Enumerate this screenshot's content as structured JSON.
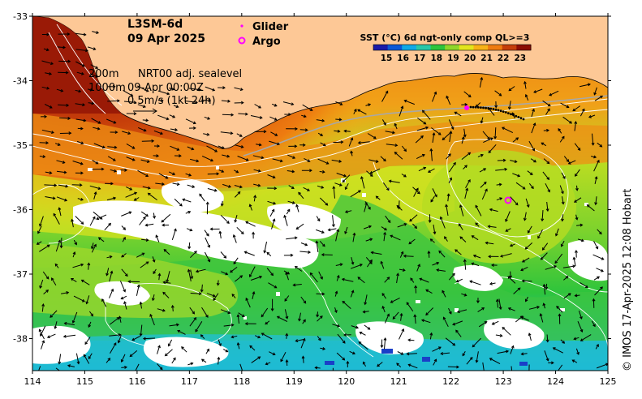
{
  "product": {
    "line1": "L3SM-6d",
    "line2": "09 Apr 2025"
  },
  "legend": {
    "glider_label": "Glider",
    "argo_label": "Argo",
    "glider_color": "#ff00ff",
    "argo_color": "#ff00ff"
  },
  "colorbar": {
    "title": "SST (°C) 6d ngt-only comp QL>=3",
    "ticks": [
      "15",
      "16",
      "17",
      "18",
      "19",
      "20",
      "21",
      "22",
      "23"
    ],
    "colors": [
      "#1a1aa8",
      "#0b58d6",
      "#10a8e6",
      "#28c7a8",
      "#2ec43c",
      "#8fd62a",
      "#e3e51c",
      "#f7b216",
      "#ee7b10",
      "#c53d0a",
      "#8c0d04"
    ]
  },
  "annotations": {
    "contour_200": "200m",
    "contour_1000": "1000m",
    "sealevel": "NRT00 adj. sealevel",
    "datetime": "09-Apr 00:00Z",
    "vector_scale": "0.5m/s (1kt 24h)"
  },
  "axes": {
    "x_ticks": [
      "114",
      "115",
      "116",
      "117",
      "118",
      "119",
      "120",
      "121",
      "122",
      "123",
      "124",
      "125"
    ],
    "y_ticks": [
      "-33",
      "-34",
      "-35",
      "-36",
      "-37",
      "-38"
    ],
    "lon_range": [
      114,
      125
    ],
    "lat_range": [
      -38.5,
      -33
    ]
  },
  "colors": {
    "land": "#fdc896",
    "coast": "#000000",
    "contour": "#ffffff",
    "glider_track": "#a8a8a8"
  },
  "copyright": "© IMOS 17-Apr-2025 12:08 Hobart"
}
